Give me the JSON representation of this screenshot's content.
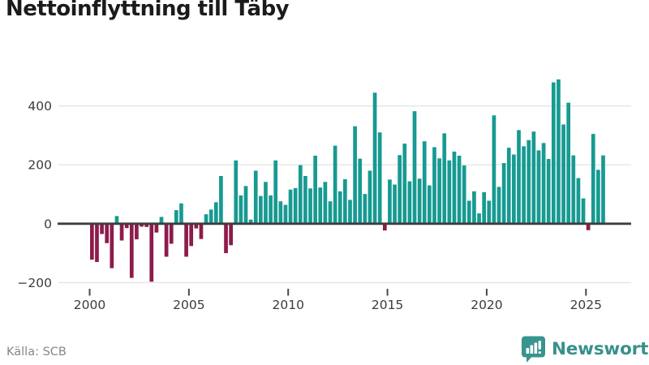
{
  "title": "Nettoinflyttning till Täby",
  "source": "Källa: SCB",
  "brand": {
    "name": "Newsworthy",
    "icon": "bar-chart-speech-bubble-icon"
  },
  "colors": {
    "positive_bar": "#179a92",
    "negative_bar": "#8d1b4c",
    "gridline": "#e4e4e4",
    "zero_line": "#3d3d3d",
    "axis_text": "#3c3c3c",
    "tick_mark": "#4a4a4a",
    "title_text": "#1b1b1b",
    "source_text": "#868686",
    "brand_teal": "#37918b",
    "logo_bubble": "#38948d"
  },
  "chart_data": {
    "type": "bar",
    "title": "Nettoinflyttning till Täby",
    "x_unit": "quarter",
    "x_start_year": 2000,
    "periods_per_year": 4,
    "x_tick_years": [
      2000,
      2005,
      2010,
      2015,
      2020,
      2025
    ],
    "y_ticks": [
      {
        "value": 400,
        "label": "400"
      },
      {
        "value": 200,
        "label": "200"
      },
      {
        "value": 0,
        "label": "0"
      },
      {
        "value": -200,
        "label": "−200"
      }
    ],
    "ylim": [
      -230,
      520
    ],
    "grid": "horizontal-light",
    "legend": "none",
    "series": [
      {
        "values": [
          -122,
          -130,
          -35,
          -66,
          -151,
          26,
          -57,
          -15,
          -184,
          -53,
          -10,
          -11,
          -197,
          -30,
          23,
          -112,
          -68,
          46,
          69,
          -112,
          -76,
          -16,
          -52,
          32,
          48,
          73,
          162,
          -100,
          -73,
          215,
          96,
          128,
          14,
          180,
          94,
          142,
          96,
          215,
          76,
          64,
          116,
          121,
          199,
          162,
          120,
          231,
          123,
          142,
          76,
          265,
          110,
          151,
          81,
          331,
          221,
          101,
          180,
          445,
          310,
          -23,
          150,
          133,
          233,
          272,
          144,
          382,
          153,
          280,
          130,
          260,
          222,
          307,
          215,
          245,
          231,
          198,
          78,
          110,
          35,
          107,
          78,
          368,
          125,
          206,
          258,
          235,
          318,
          263,
          284,
          313,
          249,
          274,
          220,
          480,
          490,
          337,
          411,
          232,
          155,
          86,
          -22,
          305,
          183,
          232
        ]
      }
    ]
  }
}
